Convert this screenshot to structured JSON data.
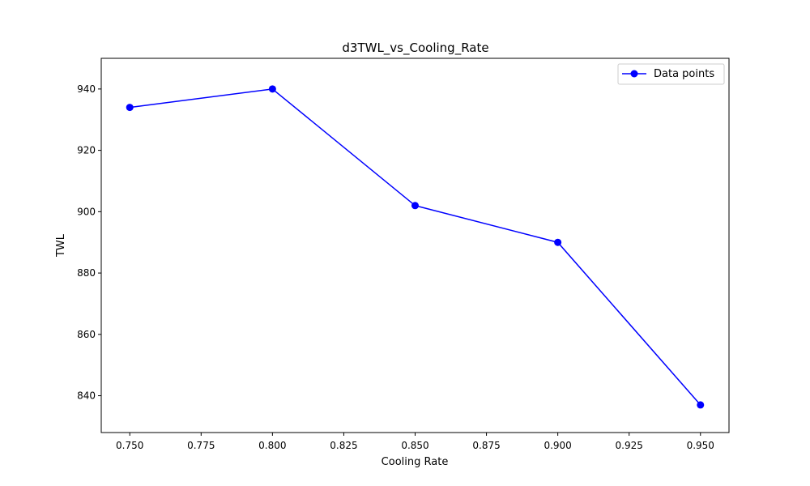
{
  "chart_data": {
    "type": "line",
    "title": "d3TWL_vs_Cooling_Rate",
    "xlabel": "Cooling Rate",
    "ylabel": "TWL",
    "xlim": [
      0.74,
      0.96
    ],
    "ylim": [
      828,
      950
    ],
    "xticks": [
      0.75,
      0.775,
      0.8,
      0.825,
      0.85,
      0.875,
      0.9,
      0.925,
      0.95
    ],
    "xtick_labels": [
      "0.750",
      "0.775",
      "0.800",
      "0.825",
      "0.850",
      "0.875",
      "0.900",
      "0.925",
      "0.950"
    ],
    "yticks": [
      840,
      860,
      880,
      900,
      920,
      940
    ],
    "ytick_labels": [
      "840",
      "860",
      "880",
      "900",
      "920",
      "940"
    ],
    "grid": false,
    "legend_position": "top-right",
    "series": [
      {
        "name": "Data points",
        "color": "#0000ff",
        "marker": "circle",
        "x": [
          0.75,
          0.8,
          0.85,
          0.9,
          0.95
        ],
        "y": [
          934,
          940,
          902,
          890,
          837
        ]
      }
    ]
  }
}
